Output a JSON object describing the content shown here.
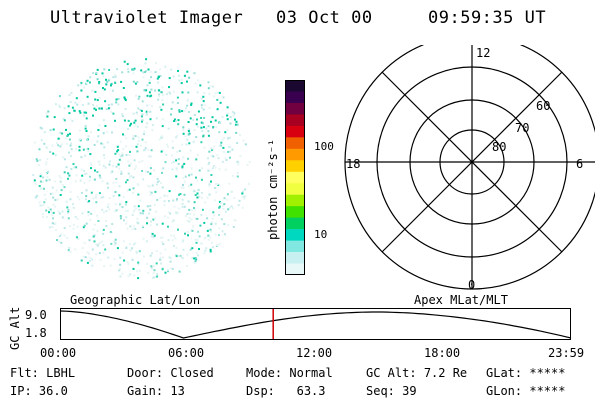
{
  "header": {
    "instrument": "Ultraviolet Imager",
    "date": "03 Oct 00",
    "time": "09:59:35 UT"
  },
  "colorbar": {
    "label": "photon cm⁻²s⁻¹",
    "ticks": [
      "100",
      "10"
    ],
    "colors": [
      "#1a0830",
      "#3a0050",
      "#700040",
      "#a80020",
      "#d80010",
      "#f06000",
      "#ff9a00",
      "#ffd000",
      "#ffff60",
      "#f0ff40",
      "#a0f000",
      "#40e000",
      "#00d060",
      "#00d8c0",
      "#80e8e0",
      "#c8f0f0",
      "#e8f8f8"
    ]
  },
  "polar_plot": {
    "mlt_labels": [
      "12",
      "18",
      "6",
      "0"
    ],
    "lat_labels": [
      "60",
      "70",
      "80"
    ]
  },
  "timeline": {
    "left_label": "Geographic Lat/Lon",
    "right_label": "Apex MLat/MLT",
    "axis_title": "GC Alt",
    "y_ticks": [
      "9.0",
      "1.8"
    ],
    "x_ticks": [
      "00:00",
      "06:00",
      "12:00",
      "18:00",
      "23:59"
    ],
    "current_time_fraction": 0.416
  },
  "footer": {
    "row1": [
      {
        "key": "Flt:",
        "value": "LBHL"
      },
      {
        "key": "Door:",
        "value": "Closed"
      },
      {
        "key": "Mode:",
        "value": "Normal"
      },
      {
        "key": "GC Alt:",
        "value": "7.2 Re"
      },
      {
        "key": "GLat:",
        "value": "*****"
      }
    ],
    "row2": [
      {
        "key": "IP:",
        "value": "36.0"
      },
      {
        "key": "Gain:",
        "value": "13"
      },
      {
        "key": "Dsp:",
        "value": "63.3"
      },
      {
        "key": "Seq:",
        "value": "39"
      },
      {
        "key": "GLon:",
        "value": "*****"
      }
    ]
  }
}
